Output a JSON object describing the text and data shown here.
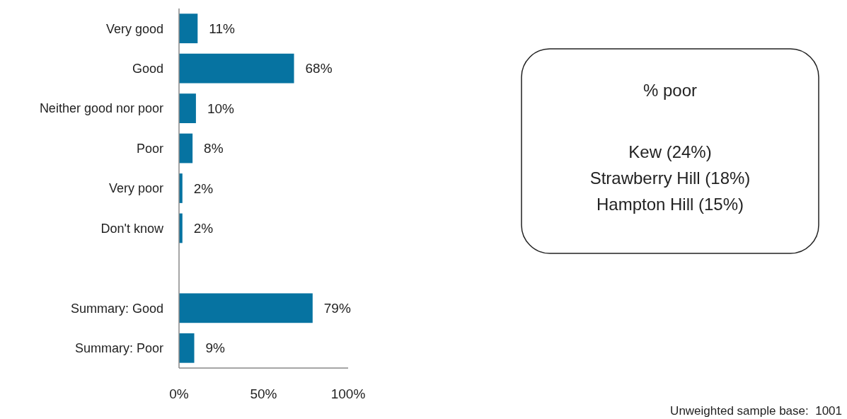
{
  "chart_data": {
    "type": "bar",
    "orientation": "horizontal",
    "categories": [
      "Very good",
      "Good",
      "Neither good nor poor",
      "Poor",
      "Very poor",
      "Don't know",
      null,
      "Summary: Good",
      "Summary: Poor"
    ],
    "values": [
      11,
      68,
      10,
      8,
      2,
      2,
      null,
      79,
      9
    ],
    "value_labels": [
      "11%",
      "68%",
      "10%",
      "8%",
      "2%",
      "2%",
      null,
      "79%",
      "9%"
    ],
    "color": "#0673a1",
    "xlim": [
      0,
      100
    ],
    "xticks": [
      {
        "value": 0,
        "label": "0%"
      },
      {
        "value": 50,
        "label": "50%"
      },
      {
        "value": 100,
        "label": "100%"
      }
    ],
    "grid": false,
    "annotations": [
      "% poor",
      "Kew (24%)",
      "Strawberry Hill (18%)",
      "Hampton Hill (15%)",
      "Unweighted sample base:  1001"
    ]
  }
}
